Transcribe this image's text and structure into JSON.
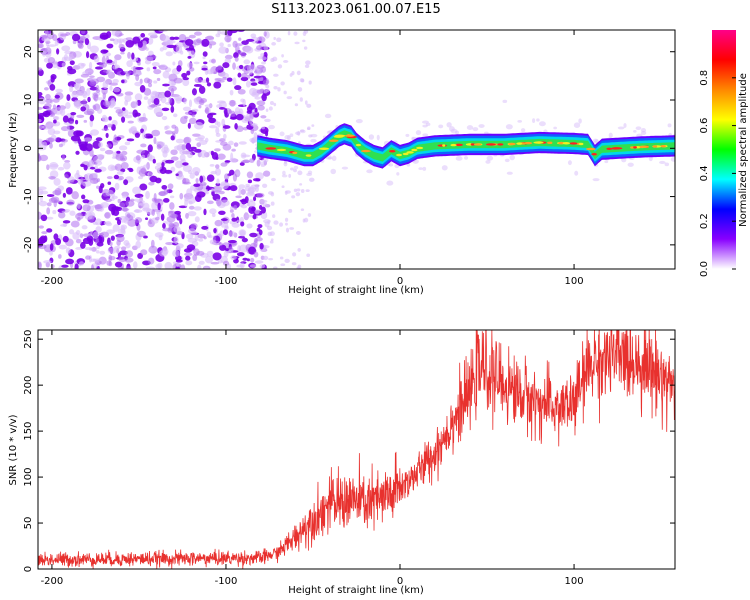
{
  "title": "S113.2023.061.00.07.E15",
  "chart_data": [
    {
      "type": "heatmap",
      "xlabel": "Height of straight line (km)",
      "ylabel": "Frequency (Hz)",
      "xlim": [
        -208,
        158
      ],
      "ylim": [
        -25,
        24.5
      ],
      "x_ticks": [
        -200,
        -100,
        0,
        100
      ],
      "y_ticks": [
        -20,
        -10,
        0,
        10,
        20
      ],
      "colorbar": {
        "label": "Normalized spectral amplitude",
        "range": [
          0,
          1
        ],
        "ticks": [
          "0.0",
          "0.2",
          "0.4",
          "0.6",
          "0.8"
        ],
        "colors": [
          "#ffffff",
          "#8800ff",
          "#0000ff",
          "#00ffff",
          "#00ff00",
          "#ffff00",
          "#ff8800",
          "#ff0000",
          "#ff0088"
        ]
      },
      "noise_region": {
        "x_start": -208,
        "x_end": -80
      },
      "ridge": {
        "x": [
          -82,
          -75,
          -65,
          -55,
          -50,
          -45,
          -40,
          -35,
          -32,
          -28,
          -25,
          -20,
          -15,
          -10,
          -5,
          0,
          5,
          10,
          20,
          40,
          60,
          80,
          100,
          108,
          112,
          116,
          125,
          140,
          158
        ],
        "freq": [
          0.5,
          0,
          -0.5,
          -1.5,
          -1.5,
          -0.5,
          1,
          2.5,
          3,
          2.5,
          1,
          -0.5,
          -1.5,
          -2,
          -0.5,
          -1.5,
          -1,
          0,
          0.5,
          0.8,
          0.8,
          1.2,
          1.0,
          0.8,
          -1.5,
          -0.2,
          0,
          0.3,
          0.5
        ]
      }
    },
    {
      "type": "line",
      "xlabel": "Height of straight line (km)",
      "ylabel": "SNR (10 * v/v)",
      "xlim": [
        -208,
        158
      ],
      "ylim": [
        0,
        260
      ],
      "x_ticks": [
        -200,
        -100,
        0,
        100
      ],
      "y_ticks": [
        0,
        50,
        100,
        150,
        200,
        250
      ],
      "color": "#e8312e",
      "trend": {
        "x": [
          -208,
          -80,
          -70,
          -60,
          -50,
          -40,
          -30,
          -20,
          -10,
          0,
          10,
          20,
          30,
          40,
          45,
          50,
          60,
          70,
          80,
          90,
          100,
          105,
          110,
          120,
          130,
          140,
          150,
          158
        ],
        "y": [
          10,
          12,
          18,
          35,
          55,
          70,
          75,
          72,
          75,
          88,
          105,
          125,
          160,
          190,
          220,
          215,
          200,
          190,
          180,
          175,
          180,
          205,
          225,
          230,
          230,
          225,
          210,
          200
        ]
      }
    }
  ]
}
